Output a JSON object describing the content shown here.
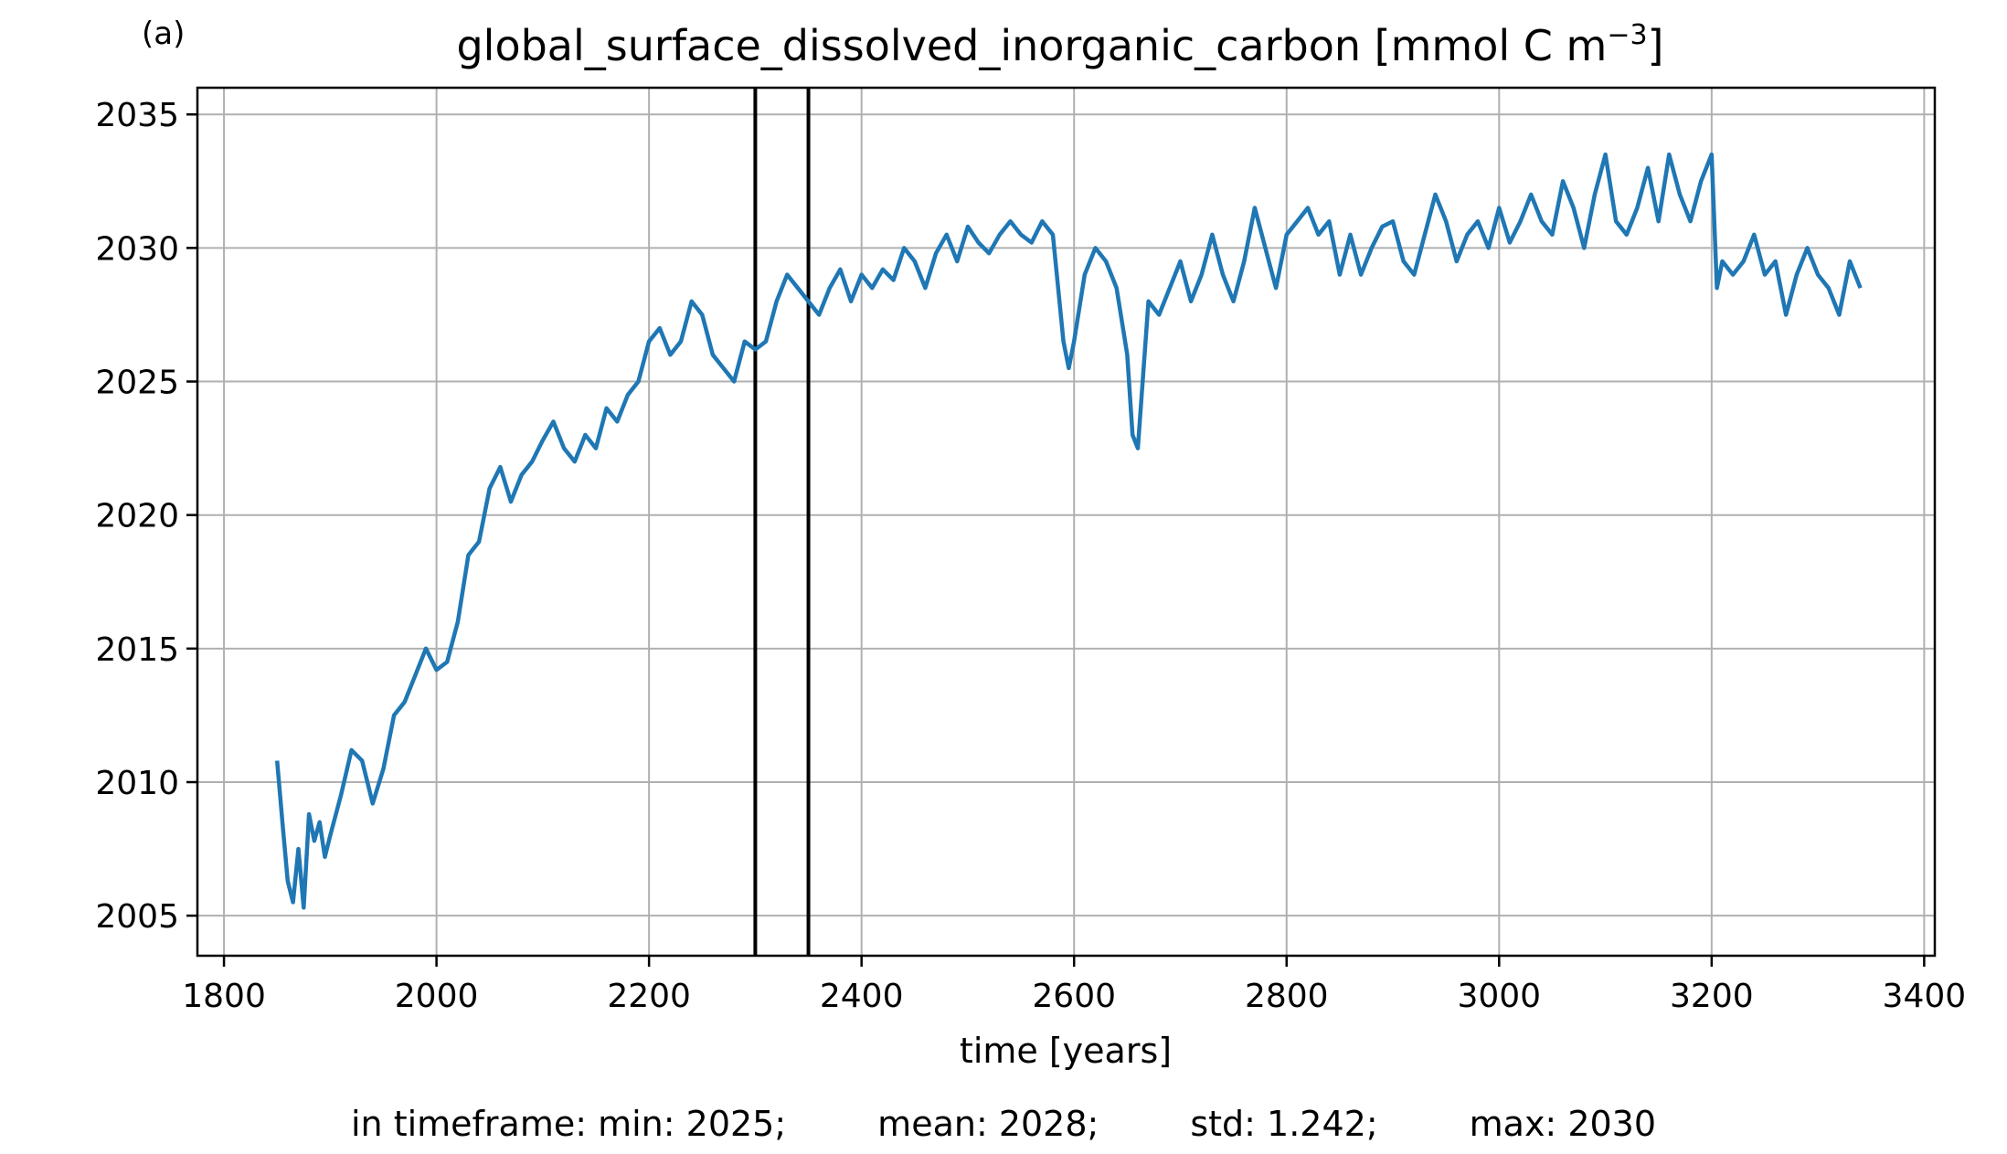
{
  "panel_label": "(a)",
  "chart_data": {
    "type": "line",
    "title": "global_surface_dissolved_inorganic_carbon [mmol C m",
    "title_superscript": "−3",
    "title_suffix": "]",
    "xlabel": "time [years]",
    "ylabel": "",
    "xlim": [
      1775,
      3410
    ],
    "ylim": [
      2003.5,
      2036
    ],
    "xticks": [
      1800,
      2000,
      2200,
      2400,
      2600,
      2800,
      3000,
      3200,
      3400
    ],
    "yticks": [
      2005,
      2010,
      2015,
      2020,
      2025,
      2030,
      2035
    ],
    "grid": true,
    "line_color": "#1f77b4",
    "vlines": [
      2300,
      2350
    ],
    "vline_color": "#000000",
    "series": [
      {
        "x": [
          1850,
          1855,
          1860,
          1865,
          1870,
          1875,
          1880,
          1885,
          1890,
          1895,
          1900,
          1910,
          1920,
          1930,
          1940,
          1950,
          1960,
          1970,
          1980,
          1990,
          2000,
          2010,
          2020,
          2030,
          2040,
          2050,
          2060,
          2070,
          2080,
          2090,
          2100,
          2110,
          2120,
          2130,
          2140,
          2150,
          2160,
          2170,
          2180,
          2190,
          2200,
          2210,
          2220,
          2230,
          2240,
          2250,
          2260,
          2270,
          2280,
          2290,
          2300,
          2310,
          2320,
          2330,
          2340,
          2350,
          2360,
          2370,
          2380,
          2390,
          2400,
          2410,
          2420,
          2430,
          2440,
          2450,
          2460,
          2470,
          2480,
          2490,
          2500,
          2510,
          2520,
          2530,
          2540,
          2550,
          2560,
          2570,
          2580,
          2590,
          2595,
          2600,
          2610,
          2620,
          2630,
          2640,
          2650,
          2655,
          2660,
          2670,
          2680,
          2690,
          2700,
          2710,
          2720,
          2730,
          2740,
          2750,
          2760,
          2770,
          2780,
          2790,
          2800,
          2810,
          2820,
          2830,
          2840,
          2850,
          2860,
          2870,
          2880,
          2890,
          2900,
          2910,
          2920,
          2930,
          2940,
          2950,
          2960,
          2970,
          2980,
          2990,
          3000,
          3010,
          3020,
          3030,
          3040,
          3050,
          3060,
          3070,
          3080,
          3090,
          3100,
          3110,
          3120,
          3130,
          3140,
          3150,
          3160,
          3170,
          3180,
          3190,
          3200,
          3205,
          3210,
          3220,
          3230,
          3240,
          3250,
          3260,
          3270,
          3280,
          3290,
          3300,
          3310,
          3320,
          3330,
          3340
        ],
        "y": [
          2010.8,
          2008.5,
          2006.3,
          2005.5,
          2007.5,
          2005.3,
          2008.8,
          2007.8,
          2008.5,
          2007.2,
          2008.0,
          2009.5,
          2011.2,
          2010.8,
          2009.2,
          2010.5,
          2012.5,
          2013.0,
          2014.0,
          2015.0,
          2014.2,
          2014.5,
          2016.0,
          2018.5,
          2019.0,
          2021.0,
          2021.8,
          2020.5,
          2021.5,
          2022.0,
          2022.8,
          2023.5,
          2022.5,
          2022.0,
          2023.0,
          2022.5,
          2024.0,
          2023.5,
          2024.5,
          2025.0,
          2026.5,
          2027.0,
          2026.0,
          2026.5,
          2028.0,
          2027.5,
          2026.0,
          2025.5,
          2025.0,
          2026.5,
          2026.2,
          2026.5,
          2028.0,
          2029.0,
          2028.5,
          2028.0,
          2027.5,
          2028.5,
          2029.2,
          2028.0,
          2029.0,
          2028.5,
          2029.2,
          2028.8,
          2030.0,
          2029.5,
          2028.5,
          2029.8,
          2030.5,
          2029.5,
          2030.8,
          2030.2,
          2029.8,
          2030.5,
          2031.0,
          2030.5,
          2030.2,
          2031.0,
          2030.5,
          2026.5,
          2025.5,
          2026.5,
          2029.0,
          2030.0,
          2029.5,
          2028.5,
          2026.0,
          2023.0,
          2022.5,
          2028.0,
          2027.5,
          2028.5,
          2029.5,
          2028.0,
          2029.0,
          2030.5,
          2029.0,
          2028.0,
          2029.5,
          2031.5,
          2030.0,
          2028.5,
          2030.5,
          2031.0,
          2031.5,
          2030.5,
          2031.0,
          2029.0,
          2030.5,
          2029.0,
          2030.0,
          2030.8,
          2031.0,
          2029.5,
          2029.0,
          2030.5,
          2032.0,
          2031.0,
          2029.5,
          2030.5,
          2031.0,
          2030.0,
          2031.5,
          2030.2,
          2031.0,
          2032.0,
          2031.0,
          2030.5,
          2032.5,
          2031.5,
          2030.0,
          2032.0,
          2033.5,
          2031.0,
          2030.5,
          2031.5,
          2033.0,
          2031.0,
          2033.5,
          2032.0,
          2031.0,
          2032.5,
          2033.5,
          2028.5,
          2029.5,
          2029.0,
          2029.5,
          2030.5,
          2029.0,
          2029.5,
          2027.5,
          2029.0,
          2030.0,
          2029.0,
          2028.5,
          2027.5,
          2029.5,
          2028.5
        ]
      }
    ]
  },
  "stats": {
    "prefix": "in timeframe: ",
    "min": "min: 2025;",
    "mean": "mean: 2028;",
    "std": "std: 1.242;",
    "max": "max: 2030"
  }
}
